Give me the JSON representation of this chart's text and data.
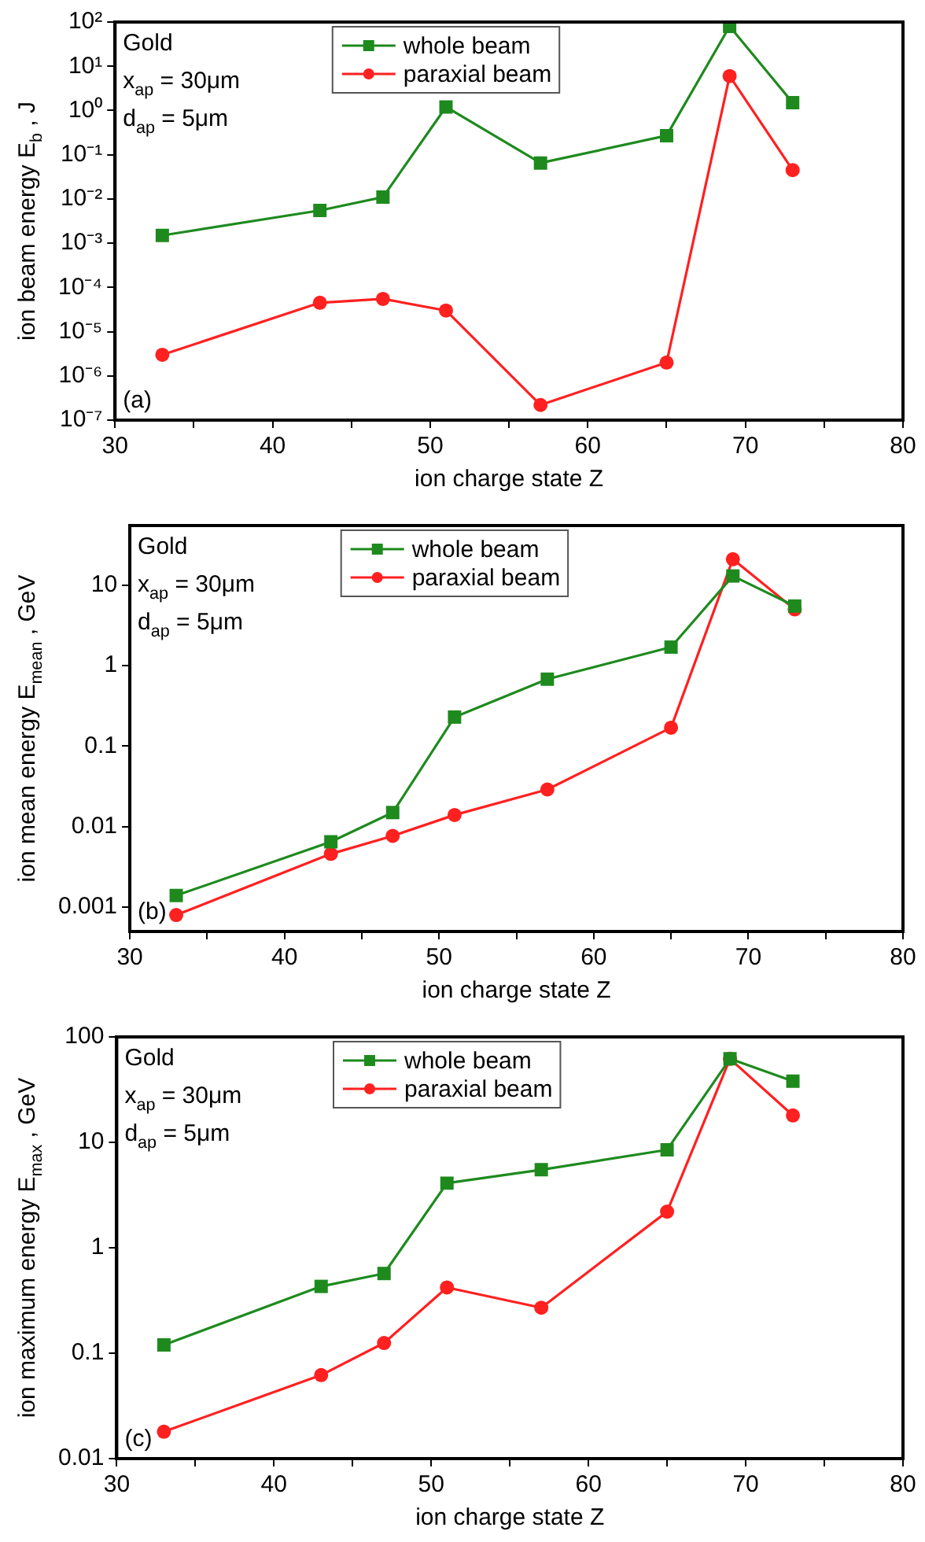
{
  "chart_data": [
    {
      "type": "line",
      "xlabel": "ion charge state Z",
      "ylabel": "ion beam energy E$_{b}$ , J",
      "log": "y",
      "grid": false,
      "legend": "top",
      "xlim": [
        30,
        80
      ],
      "xticks": [
        30,
        {
          "value": 35,
          "label": null
        },
        40,
        {
          "value": 45,
          "label": null
        },
        50,
        {
          "value": 55,
          "label": null
        },
        60,
        {
          "value": 65,
          "label": null
        },
        70,
        {
          "value": 75,
          "label": null
        },
        80
      ],
      "ylim": [
        1e-07,
        100
      ],
      "yticks": [
        {
          "value": 1e-07,
          "label": "10⁻⁷"
        },
        {
          "value": 1e-06,
          "label": "10⁻⁶"
        },
        {
          "value": 1e-05,
          "label": "10⁻⁵"
        },
        {
          "value": 0.0001,
          "label": "10⁻⁴"
        },
        {
          "value": 0.001,
          "label": "10⁻³"
        },
        {
          "value": 0.01,
          "label": "10⁻²"
        },
        {
          "value": 0.1,
          "label": "10⁻¹"
        },
        {
          "value": 1,
          "label": "10⁰"
        },
        {
          "value": 10,
          "label": "10¹"
        },
        {
          "value": 100,
          "label": "10²"
        }
      ],
      "x": [
        33,
        43,
        47,
        51,
        57,
        65,
        69,
        73
      ],
      "series": [
        {
          "name": "whole beam",
          "color": "#1e8a1e",
          "marker": "square",
          "values": [
            0.0015,
            0.0055,
            0.011,
            1.2,
            0.065,
            0.27,
            80,
            1.5
          ]
        },
        {
          "name": "paraxial beam",
          "color": "#ff2020",
          "marker": "circle",
          "values": [
            3e-06,
            4.5e-05,
            5.5e-05,
            3e-05,
            2.2e-07,
            2e-06,
            6,
            0.045
          ]
        }
      ],
      "annotations": [
        "Gold",
        "x$_{ap}$ = 30μm",
        "d$_{ap}$ = 5μm",
        "(a)"
      ]
    },
    {
      "type": "line",
      "xlabel": "ion charge state Z",
      "ylabel": "ion mean energy E$_{mean}$ , GeV",
      "log": "y",
      "grid": false,
      "legend": "top",
      "xlim": [
        30,
        80
      ],
      "xticks": [
        30,
        {
          "value": 35,
          "label": null
        },
        40,
        {
          "value": 45,
          "label": null
        },
        50,
        {
          "value": 55,
          "label": null
        },
        60,
        {
          "value": 65,
          "label": null
        },
        70,
        {
          "value": 75,
          "label": null
        },
        80
      ],
      "ylim": [
        0.0005,
        55
      ],
      "yticks": [
        0.001,
        0.01,
        0.1,
        1,
        10
      ],
      "x": [
        33,
        43,
        47,
        51,
        57,
        65,
        69,
        73
      ],
      "series": [
        {
          "name": "whole beam",
          "color": "#1e8a1e",
          "marker": "square",
          "values": [
            0.0014,
            0.0065,
            0.015,
            0.23,
            0.68,
            1.7,
            13,
            5.5
          ]
        },
        {
          "name": "paraxial beam",
          "color": "#ff2020",
          "marker": "circle",
          "values": [
            0.0008,
            0.0046,
            0.0077,
            0.014,
            0.029,
            0.17,
            21,
            5
          ]
        }
      ],
      "annotations": [
        "Gold",
        "x$_{ap}$ = 30μm",
        "d$_{ap}$ = 5μm",
        "(b)"
      ]
    },
    {
      "type": "line",
      "xlabel": "ion charge state Z",
      "ylabel": "ion maximum energy E$_{max}$ , GeV",
      "log": "y",
      "grid": false,
      "legend": "top",
      "xlim": [
        30,
        80
      ],
      "xticks": [
        30,
        {
          "value": 35,
          "label": null
        },
        40,
        {
          "value": 45,
          "label": null
        },
        50,
        {
          "value": 55,
          "label": null
        },
        60,
        {
          "value": 65,
          "label": null
        },
        70,
        {
          "value": 75,
          "label": null
        },
        80
      ],
      "ylim": [
        0.01,
        100
      ],
      "yticks": [
        0.01,
        0.1,
        1,
        10,
        100
      ],
      "x": [
        33,
        43,
        47,
        51,
        57,
        65,
        69,
        73
      ],
      "series": [
        {
          "name": "whole beam",
          "color": "#1e8a1e",
          "marker": "square",
          "values": [
            0.12,
            0.43,
            0.57,
            4.1,
            5.5,
            8.5,
            62,
            38
          ]
        },
        {
          "name": "paraxial beam",
          "color": "#ff2020",
          "marker": "circle",
          "values": [
            0.018,
            0.062,
            0.125,
            0.42,
            0.27,
            2.2,
            62,
            18
          ]
        }
      ],
      "annotations": [
        "Gold",
        "x$_{ap}$ = 30μm",
        "d$_{ap}$ = 5μm",
        "(c)"
      ]
    }
  ]
}
